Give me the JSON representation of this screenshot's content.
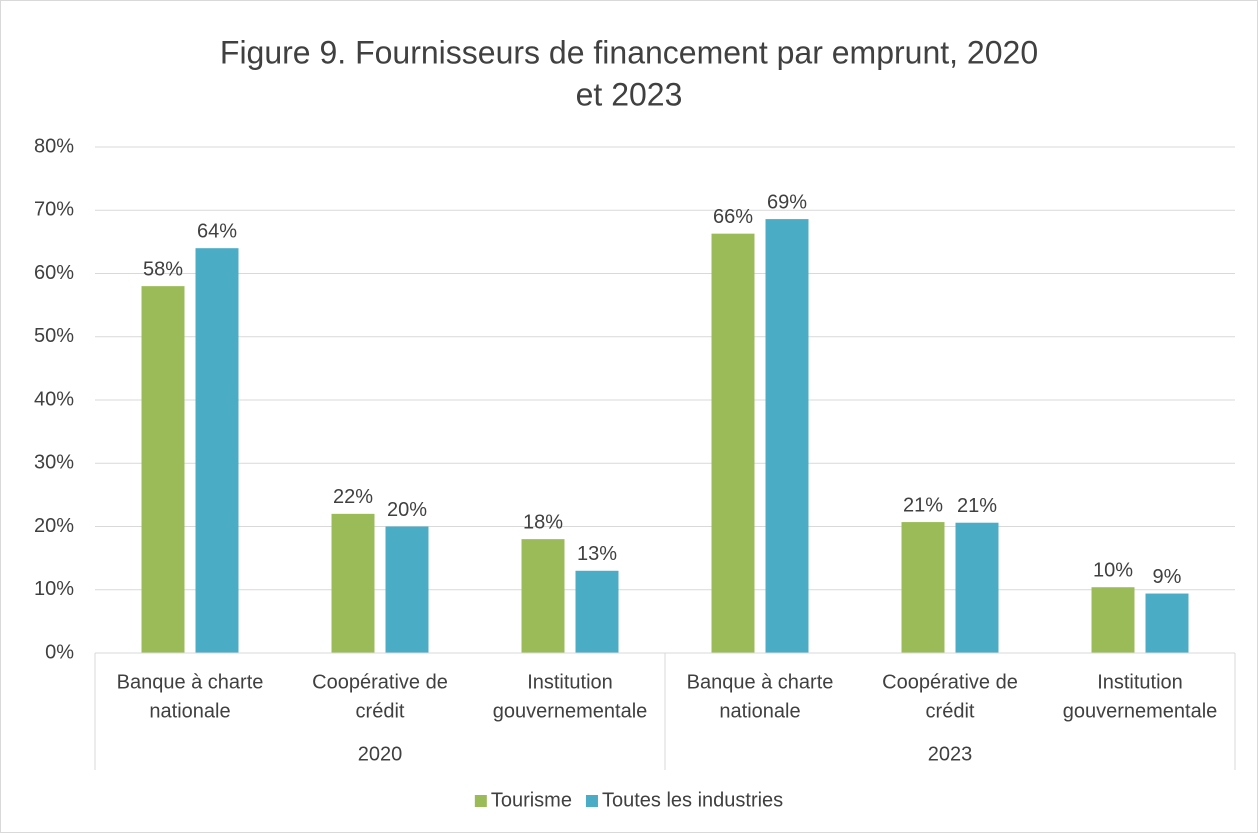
{
  "chart_data": {
    "type": "bar",
    "title": [
      "Figure 9. Fournisseurs de financement par emprunt, 2020",
      "et 2023"
    ],
    "categories": [
      [
        "Banque à charte",
        "nationale"
      ],
      [
        "Coopérative de",
        "crédit"
      ],
      [
        "Institution",
        "gouvernementale"
      ],
      [
        "Banque à charte",
        "nationale"
      ],
      [
        "Coopérative de",
        "crédit"
      ],
      [
        "Institution",
        "gouvernementale"
      ]
    ],
    "groups": [
      "2020",
      "2023"
    ],
    "series": [
      {
        "name": "Tourisme",
        "color": "#9bbb59",
        "values": [
          58,
          22,
          18,
          66.3,
          20.7,
          10.4
        ],
        "value_labels": [
          "58%",
          "22%",
          "18%",
          "66%",
          "21%",
          "10%"
        ]
      },
      {
        "name": "Toutes les industries",
        "color": "#4bacc6",
        "values": [
          64,
          20,
          13,
          68.6,
          20.6,
          9.4
        ],
        "value_labels": [
          "64%",
          "20%",
          "13%",
          "69%",
          "21%",
          "9%"
        ]
      }
    ],
    "ylim": [
      0,
      80
    ],
    "yticks": [
      {
        "value": 0,
        "label": "0%"
      },
      {
        "value": 10,
        "label": "10%"
      },
      {
        "value": 20,
        "label": "20%"
      },
      {
        "value": 30,
        "label": "30%"
      },
      {
        "value": 40,
        "label": "40%"
      },
      {
        "value": 50,
        "label": "50%"
      },
      {
        "value": 60,
        "label": "60%"
      },
      {
        "value": 70,
        "label": "70%"
      },
      {
        "value": 80,
        "label": "80%"
      }
    ],
    "grid": true,
    "legend": "bottom"
  }
}
